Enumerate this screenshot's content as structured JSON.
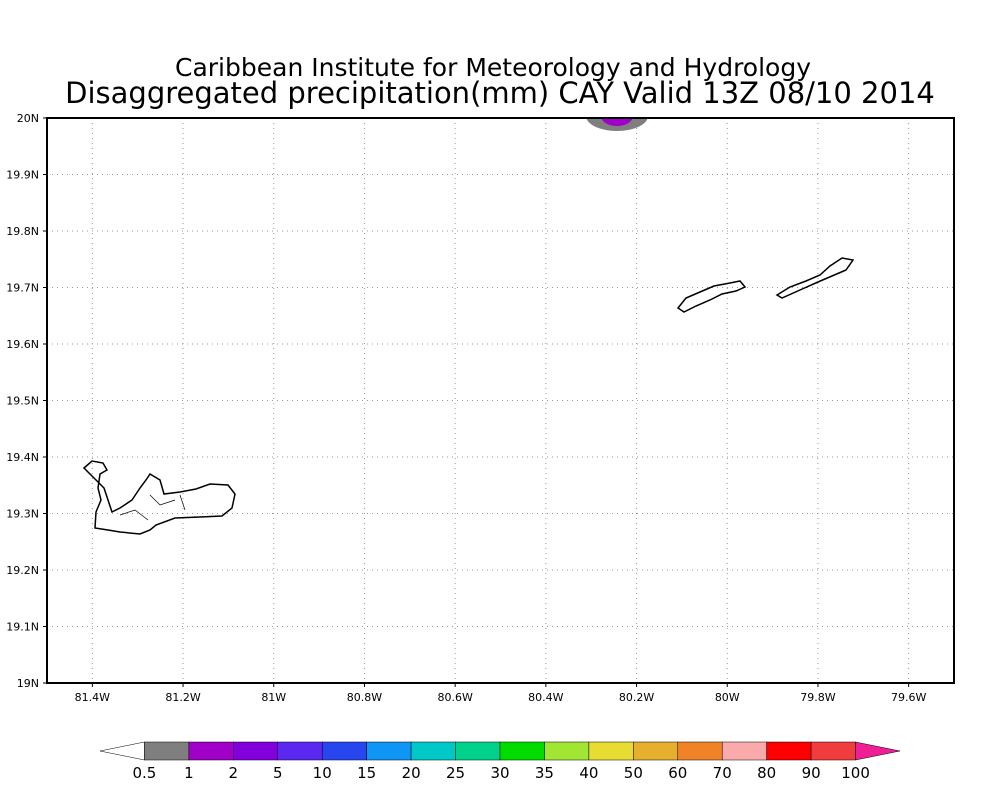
{
  "header": {
    "title": "Caribbean Institute for Meteorology and Hydrology",
    "subtitle": "Disaggregated precipitation(mm) CAY Valid 13Z 08/10 2014"
  },
  "map": {
    "xlim": [
      -81.5,
      -79.5
    ],
    "ylim": [
      19,
      20
    ],
    "xticks": [
      {
        "value": -81.4,
        "label": "81.4W"
      },
      {
        "value": -81.2,
        "label": "81.2W"
      },
      {
        "value": -81,
        "label": "81W"
      },
      {
        "value": -80.8,
        "label": "80.8W"
      },
      {
        "value": -80.6,
        "label": "80.6W"
      },
      {
        "value": -80.4,
        "label": "80.4W"
      },
      {
        "value": -80.2,
        "label": "80.2W"
      },
      {
        "value": -80,
        "label": "80W"
      },
      {
        "value": -79.8,
        "label": "79.8W"
      },
      {
        "value": -79.6,
        "label": "79.6W"
      }
    ],
    "yticks": [
      {
        "value": 19,
        "label": "19N"
      },
      {
        "value": 19.1,
        "label": "19.1N"
      },
      {
        "value": 19.2,
        "label": "19.2N"
      },
      {
        "value": 19.3,
        "label": "19.3N"
      },
      {
        "value": 19.4,
        "label": "19.4N"
      },
      {
        "value": 19.5,
        "label": "19.5N"
      },
      {
        "value": 19.6,
        "label": "19.6N"
      },
      {
        "value": 19.7,
        "label": "19.7N"
      },
      {
        "value": 19.8,
        "label": "19.8N"
      },
      {
        "value": 19.9,
        "label": "19.9N"
      },
      {
        "value": 20,
        "label": "20N"
      }
    ],
    "grid": true
  },
  "colorbar": {
    "levels": [
      0.5,
      1,
      2,
      5,
      10,
      15,
      20,
      25,
      30,
      35,
      40,
      50,
      60,
      70,
      80,
      90,
      100
    ],
    "colors": [
      "#ffffff",
      "#7f7f7f",
      "#a000c8",
      "#8200dc",
      "#5a28f0",
      "#2846f0",
      "#0f96f5",
      "#00c8c8",
      "#00d28c",
      "#00dc00",
      "#a0e632",
      "#e6dc32",
      "#e6af2d",
      "#f08228",
      "#faaaaa",
      "#ff0000",
      "#f03c3c",
      "#f01e96"
    ]
  }
}
